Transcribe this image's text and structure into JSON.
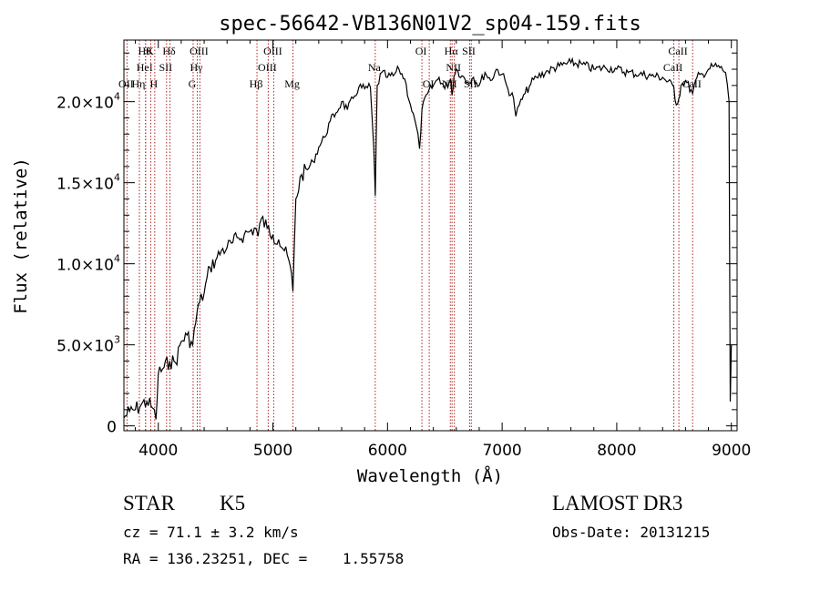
{
  "chart_data": {
    "type": "line",
    "title": "spec-56642-VB136N01V2_sp04-159.fits",
    "xlabel": "Wavelength (Å)",
    "ylabel": "Flux (relative)",
    "xlim": [
      3700,
      9050
    ],
    "ylim": [
      -300,
      23800
    ],
    "x_ticks": [
      {
        "value": 4000,
        "label": "4000"
      },
      {
        "value": 5000,
        "label": "5000"
      },
      {
        "value": 6000,
        "label": "6000"
      },
      {
        "value": 7000,
        "label": "7000"
      },
      {
        "value": 8000,
        "label": "8000"
      },
      {
        "value": 9000,
        "label": "9000"
      }
    ],
    "y_ticks": [
      {
        "value": 0,
        "mant": "0",
        "exp": ""
      },
      {
        "value": 5000,
        "mant": "5.0×10",
        "exp": "3"
      },
      {
        "value": 10000,
        "mant": "1.0×10",
        "exp": "4"
      },
      {
        "value": 15000,
        "mant": "1.5×10",
        "exp": "4"
      },
      {
        "value": 20000,
        "mant": "2.0×10",
        "exp": "4"
      }
    ],
    "series": [
      {
        "name": "spectrum",
        "x": [
          3700,
          3750,
          3800,
          3850,
          3900,
          3950,
          3980,
          4000,
          4050,
          4100,
          4150,
          4200,
          4250,
          4300,
          4340,
          4360,
          4400,
          4450,
          4500,
          4550,
          4600,
          4650,
          4700,
          4750,
          4800,
          4850,
          4870,
          4900,
          4950,
          5000,
          5050,
          5100,
          5150,
          5175,
          5200,
          5250,
          5300,
          5350,
          5400,
          5450,
          5500,
          5550,
          5600,
          5650,
          5700,
          5750,
          5800,
          5850,
          5880,
          5893,
          5910,
          5950,
          6000,
          6050,
          6100,
          6150,
          6200,
          6250,
          6280,
          6300,
          6350,
          6400,
          6450,
          6500,
          6550,
          6563,
          6580,
          6600,
          6650,
          6700,
          6750,
          6800,
          6850,
          6900,
          6950,
          7000,
          7050,
          7100,
          7120,
          7150,
          7200,
          7250,
          7300,
          7400,
          7500,
          7600,
          7700,
          7800,
          7900,
          8000,
          8100,
          8200,
          8300,
          8400,
          8498,
          8520,
          8542,
          8560,
          8600,
          8662,
          8700,
          8750,
          8800,
          8850,
          8900,
          8950,
          8980,
          8990,
          9000
        ],
        "y": [
          500,
          900,
          1000,
          1300,
          1500,
          1100,
          400,
          3200,
          3600,
          4000,
          3900,
          5200,
          5600,
          5000,
          7100,
          7600,
          8200,
          9800,
          10200,
          10800,
          11000,
          11300,
          11600,
          11800,
          12000,
          12200,
          11700,
          12800,
          12200,
          11800,
          11500,
          10800,
          9900,
          8300,
          14000,
          15500,
          15800,
          16300,
          17200,
          17800,
          18800,
          19300,
          20000,
          19500,
          20200,
          20900,
          20800,
          20900,
          17200,
          14200,
          21000,
          21800,
          21500,
          21600,
          22000,
          21400,
          19800,
          18500,
          17100,
          19500,
          20500,
          21000,
          21500,
          20800,
          21400,
          20400,
          21600,
          22000,
          21600,
          21200,
          21500,
          21000,
          21800,
          21300,
          22000,
          21700,
          20800,
          20200,
          19100,
          19800,
          20500,
          21100,
          21500,
          21900,
          22200,
          22400,
          22300,
          22000,
          22100,
          22000,
          21800,
          21700,
          21600,
          21500,
          20900,
          19800,
          20200,
          21000,
          21300,
          20500,
          21500,
          21700,
          22000,
          22200,
          22100,
          21800,
          20000,
          1500,
          5000
        ]
      }
    ],
    "lines": [
      {
        "w": 3727,
        "label": "OII",
        "row": 3
      },
      {
        "w": 3835,
        "label": "Hη",
        "row": 3
      },
      {
        "w": 3889,
        "label": "Hθ",
        "row": 1
      },
      {
        "w": 3889,
        "label": "HeI",
        "row": 2
      },
      {
        "w": 3934,
        "label": "K",
        "row": 1
      },
      {
        "w": 3969,
        "label": "H",
        "row": 3
      },
      {
        "w": 4072,
        "label": "SII",
        "row": 2
      },
      {
        "w": 4102,
        "label": "Hδ",
        "row": 1
      },
      {
        "w": 4304,
        "label": "G",
        "row": 3
      },
      {
        "w": 4340,
        "label": "Hγ",
        "row": 2
      },
      {
        "w": 4363,
        "label": "OIII",
        "row": 1
      },
      {
        "w": 4861,
        "label": "Hβ",
        "row": 3
      },
      {
        "w": 4959,
        "label": "OIII",
        "row": 2
      },
      {
        "w": 5007,
        "label": "OIII",
        "row": 1
      },
      {
        "w": 5175,
        "label": "Mg",
        "row": 3
      },
      {
        "w": 5893,
        "label": "Na",
        "row": 2
      },
      {
        "w": 6300,
        "label": "OI",
        "row": 1
      },
      {
        "w": 6364,
        "label": "OI",
        "row": 3
      },
      {
        "w": 6548,
        "label": "NII",
        "row": 3
      },
      {
        "w": 6563,
        "label": "Hα",
        "row": 1
      },
      {
        "w": 6583,
        "label": "NII",
        "row": 2
      },
      {
        "w": 6717,
        "label": "SII",
        "row": 1
      },
      {
        "w": 6731,
        "label": "SII",
        "row": 3
      },
      {
        "w": 8498,
        "label": "CaII",
        "row": 2
      },
      {
        "w": 8542,
        "label": "CaII",
        "row": 1
      },
      {
        "w": 8662,
        "label": "CaII",
        "row": 3
      }
    ]
  },
  "info": {
    "class_label": "STAR",
    "subclass": "K5",
    "survey": "LAMOST DR3",
    "cz": "cz = 71.1 ± 3.2 km/s",
    "obs_date": "Obs-Date: 20131215",
    "radec": "RA = 136.23251, DEC =    1.55758"
  },
  "colors": {
    "axis": "#000000",
    "spectrum": "#000000",
    "line_marker": "#b22222"
  }
}
